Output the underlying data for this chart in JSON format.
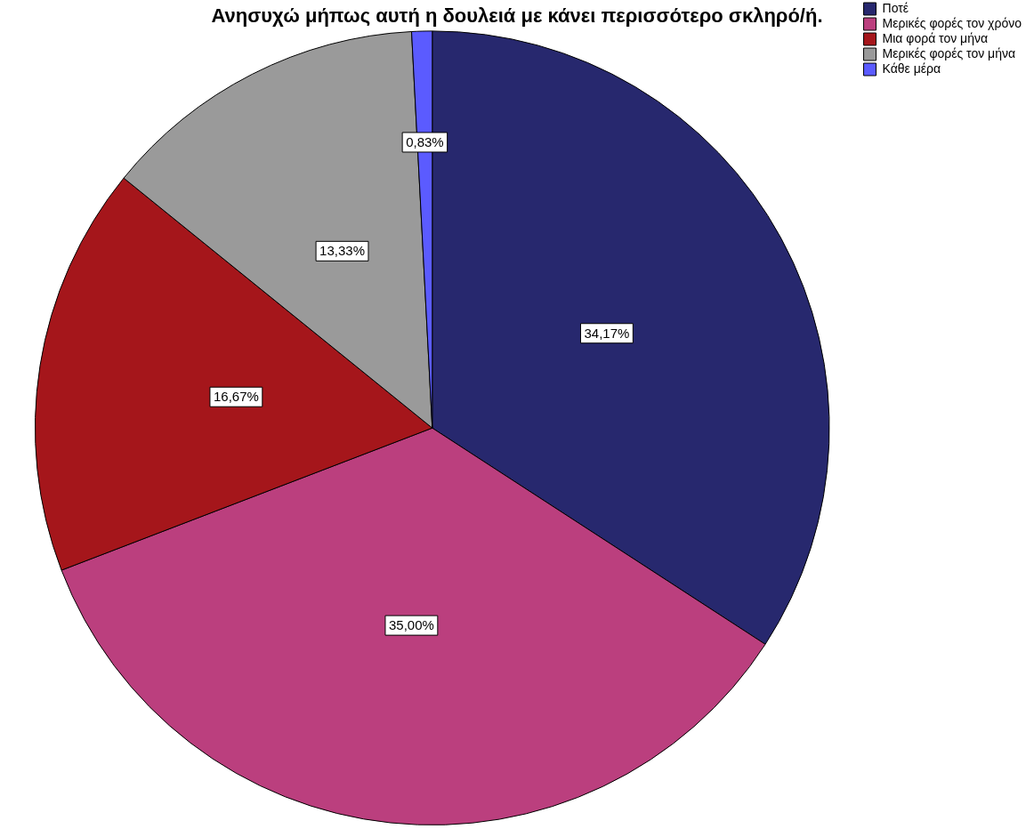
{
  "chart_data": {
    "type": "pie",
    "title": "Ανησυχώ μήπως αυτή η δουλειά με κάνει περισσότερο σκληρό/ή.",
    "categories": [
      "Ποτέ",
      "Μερικές φορές τον χρόνο",
      "Μια φορά τον μήνα",
      "Μερικές φορές τον μήνα",
      "Κάθε μέρα"
    ],
    "values": [
      34.17,
      35.0,
      16.67,
      13.33,
      0.83
    ],
    "value_labels": [
      "34,17%",
      "35,00%",
      "16,67%",
      "13,33%",
      "0,83%"
    ],
    "colors": [
      "#27286e",
      "#bb3f7e",
      "#a5161b",
      "#9a9a9a",
      "#5b5bff"
    ],
    "legend": "top right"
  }
}
